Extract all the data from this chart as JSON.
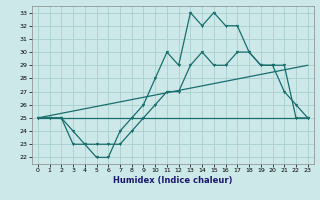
{
  "xlabel": "Humidex (Indice chaleur)",
  "bg_color": "#cce8e8",
  "grid_color": "#aad0d0",
  "line_color": "#1a6e6e",
  "xlim": [
    -0.5,
    23.5
  ],
  "ylim": [
    21.5,
    33.5
  ],
  "xticks": [
    0,
    1,
    2,
    3,
    4,
    5,
    6,
    7,
    8,
    9,
    10,
    11,
    12,
    13,
    14,
    15,
    16,
    17,
    18,
    19,
    20,
    21,
    22,
    23
  ],
  "yticks": [
    22,
    23,
    24,
    25,
    26,
    27,
    28,
    29,
    30,
    31,
    32,
    33
  ],
  "line1_x": [
    0,
    1,
    2,
    3,
    4,
    5,
    6,
    7,
    8,
    9,
    10,
    11,
    12,
    13,
    14,
    15,
    16,
    17,
    18,
    19,
    20,
    21,
    22,
    23
  ],
  "line1_y": [
    25,
    25,
    25,
    24,
    23,
    22,
    22,
    24,
    25,
    26,
    28,
    30,
    29,
    33,
    32,
    33,
    32,
    32,
    30,
    29,
    29,
    27,
    26,
    25
  ],
  "line2_x": [
    0,
    1,
    2,
    3,
    4,
    5,
    6,
    7,
    8,
    9,
    10,
    11,
    12,
    13,
    14,
    15,
    16,
    17,
    18,
    19,
    20,
    21,
    22,
    23
  ],
  "line2_y": [
    25,
    25,
    25,
    23,
    23,
    23,
    23,
    23,
    24,
    25,
    26,
    27,
    27,
    29,
    30,
    29,
    29,
    30,
    30,
    29,
    29,
    29,
    25,
    25
  ],
  "line3_x": [
    0,
    23
  ],
  "line3_y": [
    25,
    29
  ],
  "line4_x": [
    0,
    23
  ],
  "line4_y": [
    25,
    25
  ]
}
